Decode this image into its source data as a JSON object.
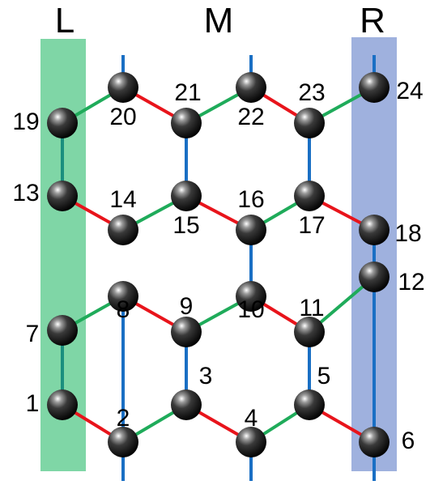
{
  "regions": {
    "left": {
      "label": "L",
      "color": "#7fd6a6"
    },
    "middle": {
      "label": "M"
    },
    "right": {
      "label": "R",
      "color": "#9fb1de"
    }
  },
  "bond_colors": {
    "red": "#e8141b",
    "green": "#1fab5a",
    "blue": "#1a6fc4",
    "teal": "#1b8f7e",
    "brown": "#a05a2c",
    "purple": "#a8326e"
  },
  "nodes": [
    {
      "id": 1,
      "label": "1"
    },
    {
      "id": 2,
      "label": "2"
    },
    {
      "id": 3,
      "label": "3"
    },
    {
      "id": 4,
      "label": "4"
    },
    {
      "id": 5,
      "label": "5"
    },
    {
      "id": 6,
      "label": "6"
    },
    {
      "id": 7,
      "label": "7"
    },
    {
      "id": 8,
      "label": "8"
    },
    {
      "id": 9,
      "label": "9"
    },
    {
      "id": 10,
      "label": "10"
    },
    {
      "id": 11,
      "label": "11"
    },
    {
      "id": 12,
      "label": "12"
    },
    {
      "id": 13,
      "label": "13"
    },
    {
      "id": 14,
      "label": "14"
    },
    {
      "id": 15,
      "label": "15"
    },
    {
      "id": 16,
      "label": "16"
    },
    {
      "id": 17,
      "label": "17"
    },
    {
      "id": 18,
      "label": "18"
    },
    {
      "id": 19,
      "label": "19"
    },
    {
      "id": 20,
      "label": "20"
    },
    {
      "id": 21,
      "label": "21"
    },
    {
      "id": 22,
      "label": "22"
    },
    {
      "id": 23,
      "label": "23"
    },
    {
      "id": 24,
      "label": "24"
    }
  ],
  "bonds": [
    {
      "from": 1,
      "to": 2,
      "color": "red"
    },
    {
      "from": 2,
      "to": 3,
      "color": "green"
    },
    {
      "from": 3,
      "to": 4,
      "color": "red"
    },
    {
      "from": 4,
      "to": 5,
      "color": "green"
    },
    {
      "from": 5,
      "to": 6,
      "color": "red"
    },
    {
      "from": 7,
      "to": 8,
      "color": "green"
    },
    {
      "from": 8,
      "to": 9,
      "color": "red"
    },
    {
      "from": 9,
      "to": 10,
      "color": "green"
    },
    {
      "from": 10,
      "to": 11,
      "color": "red"
    },
    {
      "from": 11,
      "to": 12,
      "color": "green"
    },
    {
      "from": 13,
      "to": 14,
      "color": "red"
    },
    {
      "from": 14,
      "to": 15,
      "color": "green"
    },
    {
      "from": 15,
      "to": 16,
      "color": "red"
    },
    {
      "from": 16,
      "to": 17,
      "color": "green"
    },
    {
      "from": 17,
      "to": 18,
      "color": "red"
    },
    {
      "from": 19,
      "to": 20,
      "color": "green"
    },
    {
      "from": 20,
      "to": 21,
      "color": "red"
    },
    {
      "from": 21,
      "to": 22,
      "color": "green"
    },
    {
      "from": 22,
      "to": 23,
      "color": "red"
    },
    {
      "from": 23,
      "to": 24,
      "color": "green"
    },
    {
      "from": 1,
      "to": 7,
      "color": "teal"
    },
    {
      "from": 13,
      "to": 19,
      "color": "teal"
    },
    {
      "from": 6,
      "to": 12,
      "color": "blue"
    },
    {
      "from": 12,
      "to": 18,
      "color": "blue"
    },
    {
      "from": 3,
      "to": 9,
      "color": "blue"
    },
    {
      "from": 15,
      "to": 21,
      "color": "blue"
    },
    {
      "from": 2,
      "to": 8,
      "color": "blue"
    },
    {
      "from": 10,
      "to": 16,
      "color": "blue"
    },
    {
      "from": 5,
      "to": 11,
      "color": "blue"
    },
    {
      "from": 17,
      "to": 23,
      "color": "blue"
    }
  ],
  "open_bonds": [
    {
      "node": 2,
      "direction": "down"
    },
    {
      "node": 4,
      "direction": "down"
    },
    {
      "node": 6,
      "direction": "down"
    },
    {
      "node": 20,
      "direction": "up"
    },
    {
      "node": 22,
      "direction": "up"
    },
    {
      "node": 24,
      "direction": "up"
    }
  ]
}
